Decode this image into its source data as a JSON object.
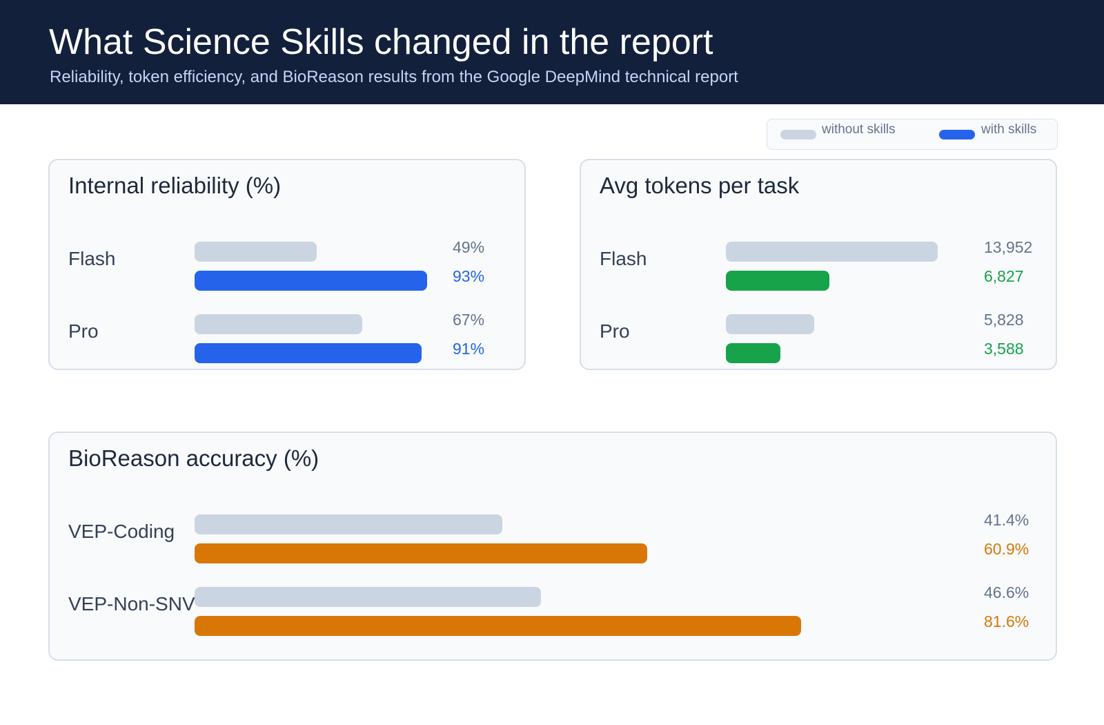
{
  "header": {
    "title": "What Science Skills changed in the report",
    "subtitle": "Reliability, token efficiency, and BioReason results from the Google DeepMind technical report"
  },
  "legend": {
    "without_label": "without skills",
    "with_label": "with skills",
    "without_color": "#cbd5e1",
    "with_color": "#2563eb"
  },
  "colors": {
    "baseline": "#cbd5e1",
    "reliability": "#2563eb",
    "tokens": "#16a34a",
    "bioreason": "#d97706"
  },
  "panels": {
    "reliability": {
      "title": "Internal reliability (%)"
    },
    "tokens": {
      "title": "Avg tokens per task"
    },
    "bioreason": {
      "title": "BioReason accuracy (%)"
    }
  },
  "chart_data": [
    {
      "type": "bar",
      "title": "Internal reliability (%)",
      "categories": [
        "Flash",
        "Pro"
      ],
      "series": [
        {
          "name": "without skills",
          "values": [
            49,
            67
          ],
          "labels": [
            "49%",
            "67%"
          ]
        },
        {
          "name": "with skills",
          "values": [
            93,
            91
          ],
          "labels": [
            "93%",
            "91%"
          ]
        }
      ],
      "xlim": [
        0,
        100
      ]
    },
    {
      "type": "bar",
      "title": "Avg tokens per task",
      "categories": [
        "Flash",
        "Pro"
      ],
      "series": [
        {
          "name": "without skills",
          "values": [
            13952,
            5828
          ],
          "labels": [
            "13,952",
            "5,828"
          ]
        },
        {
          "name": "with skills",
          "values": [
            6827,
            3588
          ],
          "labels": [
            "6,827",
            "3,588"
          ]
        }
      ],
      "xlim": [
        0,
        13952
      ]
    },
    {
      "type": "bar",
      "title": "BioReason accuracy (%)",
      "categories": [
        "VEP-Coding",
        "VEP-Non-SNV"
      ],
      "series": [
        {
          "name": "without skills",
          "values": [
            41.4,
            46.6
          ],
          "labels": [
            "41.4%",
            "46.6%"
          ]
        },
        {
          "name": "with skills",
          "values": [
            60.9,
            81.6
          ],
          "labels": [
            "60.9%",
            "81.6%"
          ]
        }
      ],
      "xlim": [
        0,
        100
      ]
    }
  ]
}
